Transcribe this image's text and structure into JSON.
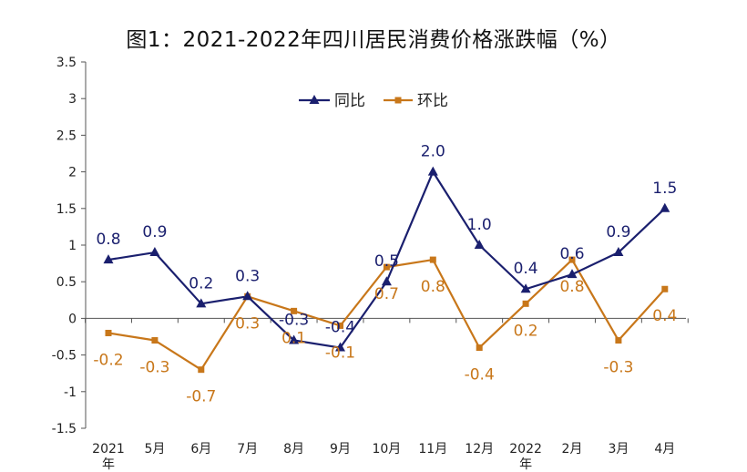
{
  "chart_data": {
    "type": "line",
    "title": "图1：2021-2022年四川居民消费价格涨跌幅（%）",
    "categories": [
      "2021年",
      "5月",
      "6月",
      "7月",
      "8月",
      "9月",
      "10月",
      "11月",
      "12月",
      "2022年",
      "2月",
      "3月",
      "4月"
    ],
    "xlabel": "",
    "ylabel": "",
    "ylim": [
      -1.5,
      3.5
    ],
    "yticks": [
      -1.5,
      -1,
      -0.5,
      0,
      0.5,
      1,
      1.5,
      2,
      2.5,
      3,
      3.5
    ],
    "ytick_labels": [
      "-1.5",
      "-1",
      "-0.5",
      "0",
      "0.5",
      "1",
      "1.5",
      "2",
      "2.5",
      "3",
      "3.5"
    ],
    "grid": false,
    "legend_position": "top-center",
    "series": [
      {
        "name": "同比",
        "color": "#1a1f6e",
        "marker": "triangle",
        "values": [
          0.8,
          0.9,
          0.2,
          0.3,
          -0.3,
          -0.4,
          0.5,
          2.0,
          1.0,
          0.4,
          0.6,
          0.9,
          1.5
        ],
        "labels": [
          "0.8",
          "0.9",
          "0.2",
          "0.3",
          "-0.3",
          "-0.4",
          "0.5",
          "2.0",
          "1.0",
          "0.4",
          "0.6",
          "0.9",
          "1.5"
        ]
      },
      {
        "name": "环比",
        "color": "#c8771a",
        "marker": "square",
        "values": [
          -0.2,
          -0.3,
          -0.7,
          0.3,
          0.1,
          -0.1,
          0.7,
          0.8,
          -0.4,
          0.2,
          0.8,
          -0.3,
          0.4
        ],
        "labels": [
          "-0.2",
          "-0.3",
          "-0.7",
          "0.3",
          "0.1",
          "-0.1",
          "0.7",
          "0.8",
          "-0.4",
          "0.2",
          "0.8",
          "-0.3",
          "0.4"
        ]
      }
    ]
  }
}
